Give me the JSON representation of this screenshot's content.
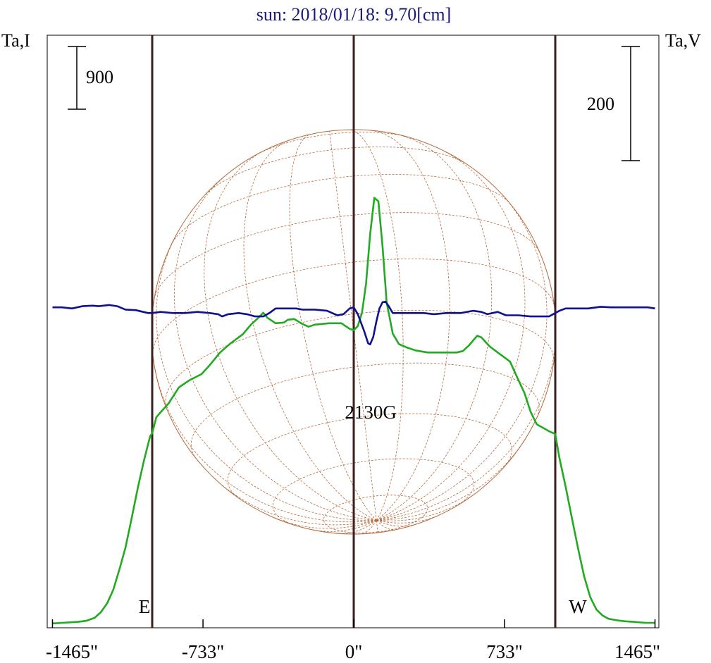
{
  "chart_data": {
    "type": "line",
    "title": "sun: 2018/01/18: 9.70[cm]",
    "left_axis_label": "Ta,I",
    "right_axis_label": "Ta,V",
    "scale_bars": {
      "left": "900",
      "right": "200"
    },
    "x_ticks": [
      {
        "value": -1465,
        "label": "-1465\""
      },
      {
        "value": -733,
        "label": "-733\""
      },
      {
        "value": 0,
        "label": "0\""
      },
      {
        "value": 733,
        "label": "733\""
      },
      {
        "value": 1465,
        "label": "1465\""
      }
    ],
    "xlim": [
      -1465,
      1465
    ],
    "vertical_lines": [
      {
        "value": -980,
        "label": "E"
      },
      {
        "value": 0,
        "label": ""
      },
      {
        "value": 980,
        "label": "W"
      }
    ],
    "annotations": [
      {
        "text": "2130G",
        "x": 100
      }
    ],
    "disk": {
      "radius_arcsec": 980,
      "grid": true
    },
    "colors": {
      "title": "#1a1a7a",
      "intensity": "#22aa22",
      "circular_polarization": "#101090",
      "vertical_lines": "#3d1f1f",
      "disk": "#b56a3c",
      "axes": "#000000"
    },
    "series": [
      {
        "name": "",
        "axis": "left",
        "color_key": "intensity",
        "points": [
          [
            -1465,
            -7
          ],
          [
            -1450,
            -7
          ],
          [
            -1420,
            0
          ],
          [
            -1380,
            7
          ],
          [
            -1340,
            14
          ],
          [
            -1300,
            29
          ],
          [
            -1260,
            72
          ],
          [
            -1230,
            152
          ],
          [
            -1200,
            275
          ],
          [
            -1170,
            470
          ],
          [
            -1140,
            760
          ],
          [
            -1110,
            1080
          ],
          [
            -1080,
            1500
          ],
          [
            -1050,
            1940
          ],
          [
            -1020,
            2330
          ],
          [
            -990,
            2680
          ],
          [
            -980,
            2720
          ],
          [
            -960,
            2950
          ],
          [
            -940,
            3020
          ],
          [
            -900,
            3150
          ],
          [
            -850,
            3380
          ],
          [
            -800,
            3480
          ],
          [
            -740,
            3570
          ],
          [
            -700,
            3700
          ],
          [
            -650,
            3880
          ],
          [
            -600,
            4010
          ],
          [
            -540,
            4140
          ],
          [
            -500,
            4280
          ],
          [
            -460,
            4390
          ],
          [
            -440,
            4450
          ],
          [
            -420,
            4380
          ],
          [
            -380,
            4300
          ],
          [
            -340,
            4310
          ],
          [
            -320,
            4350
          ],
          [
            -290,
            4360
          ],
          [
            -250,
            4290
          ],
          [
            -220,
            4250
          ],
          [
            -190,
            4280
          ],
          [
            -120,
            4300
          ],
          [
            -60,
            4300
          ],
          [
            -20,
            4220
          ],
          [
            0,
            4200
          ],
          [
            20,
            4260
          ],
          [
            40,
            4450
          ],
          [
            60,
            4870
          ],
          [
            80,
            5580
          ],
          [
            100,
            6100
          ],
          [
            120,
            6050
          ],
          [
            140,
            5400
          ],
          [
            160,
            4600
          ],
          [
            190,
            4150
          ],
          [
            220,
            4000
          ],
          [
            260,
            3950
          ],
          [
            300,
            3910
          ],
          [
            360,
            3880
          ],
          [
            420,
            3880
          ],
          [
            500,
            3880
          ],
          [
            530,
            3900
          ],
          [
            560,
            3980
          ],
          [
            600,
            4120
          ],
          [
            620,
            4100
          ],
          [
            660,
            3970
          ],
          [
            700,
            3880
          ],
          [
            760,
            3750
          ],
          [
            800,
            3490
          ],
          [
            830,
            3300
          ],
          [
            860,
            3030
          ],
          [
            890,
            2850
          ],
          [
            920,
            2800
          ],
          [
            950,
            2750
          ],
          [
            980,
            2710
          ],
          [
            1000,
            2370
          ],
          [
            1030,
            1960
          ],
          [
            1060,
            1520
          ],
          [
            1090,
            1080
          ],
          [
            1120,
            670
          ],
          [
            1150,
            370
          ],
          [
            1180,
            190
          ],
          [
            1210,
            105
          ],
          [
            1240,
            58
          ],
          [
            1280,
            36
          ],
          [
            1320,
            22
          ],
          [
            1360,
            14
          ],
          [
            1420,
            0
          ],
          [
            1465,
            0
          ]
        ]
      },
      {
        "name": "",
        "axis": "right",
        "color_key": "circular_polarization",
        "points": [
          [
            -1465,
            1
          ],
          [
            -1420,
            1
          ],
          [
            -1370,
            -1
          ],
          [
            -1320,
            3
          ],
          [
            -1270,
            4
          ],
          [
            -1240,
            3
          ],
          [
            -1190,
            5
          ],
          [
            -1150,
            3
          ],
          [
            -1110,
            -3
          ],
          [
            -1060,
            -4
          ],
          [
            -1000,
            -9
          ],
          [
            -980,
            -9
          ],
          [
            -940,
            -7
          ],
          [
            -880,
            -9
          ],
          [
            -820,
            -9
          ],
          [
            -760,
            -7
          ],
          [
            -700,
            -9
          ],
          [
            -660,
            -11
          ],
          [
            -640,
            -15
          ],
          [
            -610,
            -11
          ],
          [
            -560,
            -9
          ],
          [
            -520,
            -11
          ],
          [
            -480,
            -15
          ],
          [
            -440,
            -15
          ],
          [
            -410,
            -9
          ],
          [
            -380,
            -1
          ],
          [
            -330,
            -1
          ],
          [
            -280,
            -1
          ],
          [
            -250,
            -3
          ],
          [
            -190,
            -3
          ],
          [
            -130,
            -5
          ],
          [
            -80,
            -13
          ],
          [
            -50,
            -11
          ],
          [
            -20,
            -1
          ],
          [
            0,
            1
          ],
          [
            20,
            -11
          ],
          [
            50,
            -40
          ],
          [
            70,
            -62
          ],
          [
            80,
            -64
          ],
          [
            95,
            -51
          ],
          [
            110,
            -24
          ],
          [
            125,
            -1
          ],
          [
            140,
            10
          ],
          [
            155,
            11
          ],
          [
            170,
            3
          ],
          [
            190,
            -9
          ],
          [
            220,
            -9
          ],
          [
            280,
            -9
          ],
          [
            340,
            -9
          ],
          [
            390,
            -11
          ],
          [
            450,
            -9
          ],
          [
            520,
            -9
          ],
          [
            580,
            -5
          ],
          [
            620,
            -7
          ],
          [
            650,
            -11
          ],
          [
            700,
            -7
          ],
          [
            740,
            -13
          ],
          [
            800,
            -13
          ],
          [
            860,
            -15
          ],
          [
            910,
            -15
          ],
          [
            950,
            -15
          ],
          [
            980,
            -9
          ],
          [
            1000,
            -5
          ],
          [
            1030,
            -1
          ],
          [
            1080,
            -1
          ],
          [
            1140,
            -1
          ],
          [
            1200,
            2
          ],
          [
            1250,
            1
          ],
          [
            1290,
            1
          ],
          [
            1330,
            1
          ],
          [
            1380,
            1
          ],
          [
            1430,
            1
          ],
          [
            1465,
            -1
          ]
        ]
      }
    ]
  }
}
